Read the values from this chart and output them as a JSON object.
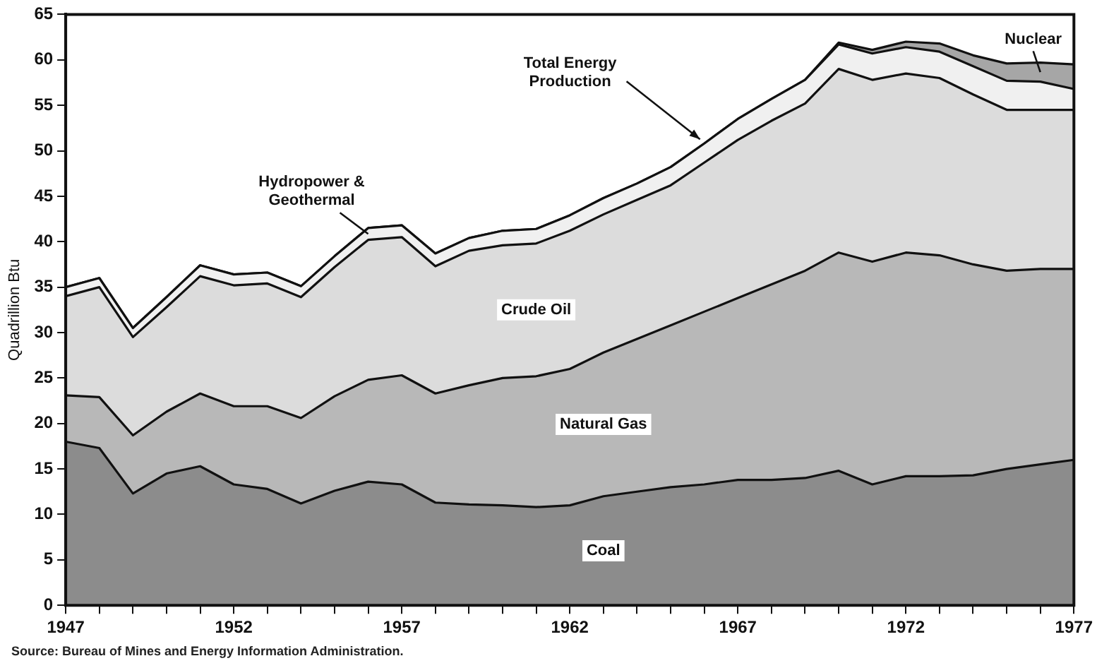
{
  "chart_data": {
    "type": "area",
    "stacked": true,
    "ylabel": "Quadrillion Btu",
    "x": [
      1947,
      1948,
      1949,
      1950,
      1951,
      1952,
      1953,
      1954,
      1955,
      1956,
      1957,
      1958,
      1959,
      1960,
      1961,
      1962,
      1963,
      1964,
      1965,
      1966,
      1967,
      1968,
      1969,
      1970,
      1971,
      1972,
      1973,
      1974,
      1975,
      1976,
      1977
    ],
    "xlim": [
      1947,
      1977
    ],
    "xticks": [
      1947,
      {
        "value": 1948,
        "label": null
      },
      {
        "value": 1949,
        "label": null
      },
      {
        "value": 1950,
        "label": null
      },
      {
        "value": 1951,
        "label": null
      },
      1952,
      {
        "value": 1953,
        "label": null
      },
      {
        "value": 1954,
        "label": null
      },
      {
        "value": 1955,
        "label": null
      },
      {
        "value": 1956,
        "label": null
      },
      1957,
      {
        "value": 1958,
        "label": null
      },
      {
        "value": 1959,
        "label": null
      },
      {
        "value": 1960,
        "label": null
      },
      {
        "value": 1961,
        "label": null
      },
      1962,
      {
        "value": 1963,
        "label": null
      },
      {
        "value": 1964,
        "label": null
      },
      {
        "value": 1965,
        "label": null
      },
      {
        "value": 1966,
        "label": null
      },
      1967,
      {
        "value": 1968,
        "label": null
      },
      {
        "value": 1969,
        "label": null
      },
      {
        "value": 1970,
        "label": null
      },
      {
        "value": 1971,
        "label": null
      },
      1972,
      {
        "value": 1973,
        "label": null
      },
      {
        "value": 1974,
        "label": null
      },
      {
        "value": 1975,
        "label": null
      },
      {
        "value": 1976,
        "label": null
      },
      1977
    ],
    "ylim": [
      0,
      65
    ],
    "yticks": [
      0,
      5,
      10,
      15,
      20,
      25,
      30,
      35,
      40,
      45,
      50,
      55,
      60,
      65
    ],
    "series": [
      {
        "name": "Coal",
        "color": "#8c8c8c",
        "values": [
          18,
          17.3,
          12.3,
          14.5,
          15.3,
          13.3,
          12.8,
          11.2,
          12.6,
          13.6,
          13.3,
          11.3,
          11.1,
          11.0,
          10.8,
          11.0,
          12.0,
          12.5,
          13.0,
          13.3,
          13.8,
          13.8,
          14.0,
          14.8,
          13.3,
          14.2,
          14.2,
          14.3,
          15.0,
          15.5,
          16.0
        ]
      },
      {
        "name": "Natural Gas",
        "color": "#b8b8b8",
        "values": [
          5.1,
          5.6,
          6.4,
          6.8,
          8.0,
          8.6,
          9.1,
          9.4,
          10.4,
          11.2,
          12.0,
          12.0,
          13.1,
          14.0,
          14.4,
          15.0,
          15.8,
          16.8,
          17.8,
          19.0,
          20.0,
          21.5,
          22.8,
          24.0,
          24.5,
          24.6,
          24.3,
          23.2,
          21.8,
          21.5,
          21.0
        ]
      },
      {
        "name": "Crude Oil",
        "color": "#dcdcdc",
        "values": [
          10.9,
          12.1,
          10.8,
          11.5,
          12.9,
          13.3,
          13.5,
          13.3,
          14.2,
          15.4,
          15.2,
          14.0,
          14.8,
          14.6,
          14.6,
          15.2,
          15.2,
          15.3,
          15.4,
          16.4,
          17.4,
          18.0,
          18.4,
          20.2,
          20.0,
          19.7,
          19.5,
          18.7,
          17.7,
          17.5,
          17.5
        ]
      },
      {
        "name": "Hydropower & Geothermal",
        "color": "#f0f0f0",
        "values": [
          1.0,
          1.0,
          1.0,
          1.1,
          1.2,
          1.2,
          1.2,
          1.2,
          1.2,
          1.3,
          1.3,
          1.4,
          1.4,
          1.6,
          1.6,
          1.7,
          1.8,
          1.8,
          2.0,
          2.1,
          2.3,
          2.4,
          2.6,
          2.7,
          2.9,
          2.9,
          2.9,
          3.1,
          3.2,
          3.1,
          2.3
        ]
      },
      {
        "name": "Nuclear",
        "color": "#a6a6a6",
        "values": [
          0,
          0,
          0,
          0,
          0,
          0,
          0,
          0,
          0,
          0,
          0,
          0,
          0,
          0,
          0,
          0,
          0,
          0,
          0,
          0,
          0,
          0,
          0,
          0.2,
          0.4,
          0.6,
          0.9,
          1.2,
          1.9,
          2.1,
          2.7
        ]
      }
    ],
    "annotations": [
      {
        "text": "Total Energy Production",
        "x": 1966,
        "y": 50.8
      },
      "Source:  Bureau of Mines and Energy Information Administration."
    ],
    "grid": false,
    "legend": false,
    "marker": "none",
    "line_style": "solid"
  }
}
